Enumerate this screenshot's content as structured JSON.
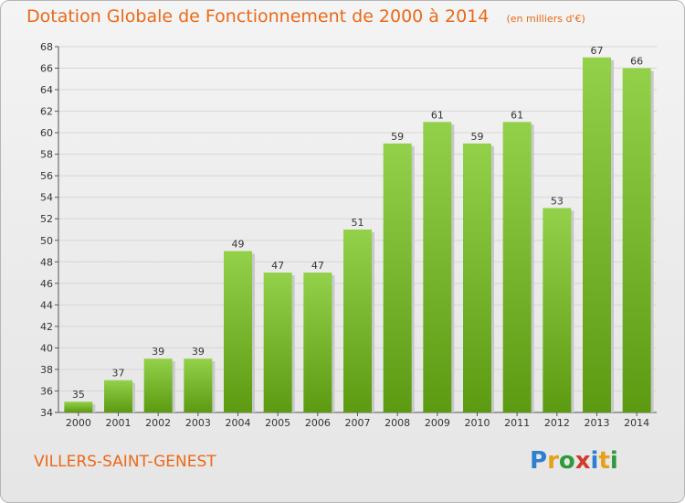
{
  "chart_data": {
    "type": "bar",
    "title": "Dotation Globale de Fonctionnement de 2000 à 2014",
    "subtitle": "(en milliers d'€)",
    "xlabel": "",
    "ylabel": "",
    "categories": [
      "2000",
      "2001",
      "2002",
      "2003",
      "2004",
      "2005",
      "2006",
      "2007",
      "2008",
      "2009",
      "2010",
      "2011",
      "2012",
      "2013",
      "2014"
    ],
    "values": [
      35,
      37,
      39,
      39,
      49,
      47,
      47,
      51,
      59,
      61,
      59,
      61,
      53,
      67,
      66
    ],
    "ylim": [
      34,
      68
    ],
    "yticks": [
      34,
      36,
      38,
      40,
      42,
      44,
      46,
      48,
      50,
      52,
      54,
      56,
      58,
      60,
      62,
      64,
      66,
      68
    ],
    "grid": true,
    "bar_color_top": "#93d14a",
    "bar_color_bottom": "#5c9a12"
  },
  "footer": {
    "commune": "VILLERS-SAINT-GENEST"
  },
  "logo": {
    "text": "Proxiti",
    "colors": [
      "#2f7fd0",
      "#e8a018",
      "#2f9a3a",
      "#d43a2a",
      "#2f7fd0",
      "#e8a018",
      "#2f9a3a"
    ]
  }
}
